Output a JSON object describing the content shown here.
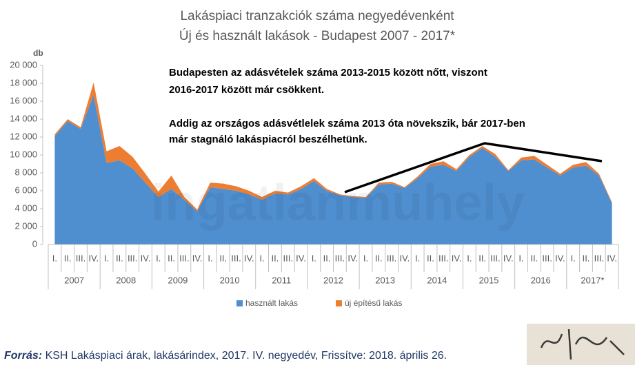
{
  "chart_data": {
    "type": "stacked_area",
    "title": "Lakáspiaci tranzakciók száma negyedévenként",
    "subtitle": "Új és használt lakások - Budapest 2007 - 2017*",
    "y_label": "db",
    "categories": [
      "I.",
      "II.",
      "III.",
      "IV.",
      "I.",
      "II.",
      "III.",
      "IV.",
      "I.",
      "II.",
      "III.",
      "IV.",
      "I.",
      "II.",
      "III.",
      "IV.",
      "I.",
      "II.",
      "III.",
      "IV.",
      "I.",
      "II.",
      "III.",
      "IV.",
      "I.",
      "II.",
      "III.",
      "IV.",
      "I.",
      "II.",
      "III.",
      "IV.",
      "I.",
      "II.",
      "III.",
      "IV.",
      "I.",
      "II.",
      "III.",
      "IV.",
      "I.",
      "II.",
      "III.",
      "IV."
    ],
    "years": [
      "2007",
      "2008",
      "2009",
      "2010",
      "2011",
      "2012",
      "2013",
      "2014",
      "2015",
      "2016",
      "2017*"
    ],
    "series": [
      {
        "name": "használt lakás",
        "color": "#4f8fd0",
        "values": [
          12100,
          13800,
          12900,
          16700,
          9100,
          9400,
          8500,
          6900,
          5300,
          6200,
          5000,
          3700,
          6400,
          6200,
          6000,
          5600,
          5000,
          5700,
          5600,
          6200,
          7100,
          6000,
          5500,
          5300,
          5200,
          6700,
          6800,
          6300,
          7400,
          8700,
          8900,
          8200,
          9800,
          10800,
          9800,
          8200,
          9400,
          9500,
          8600,
          7700,
          8600,
          8800,
          7700,
          4600
        ]
      },
      {
        "name": "új építésű lakás",
        "color": "#ed7d31",
        "values": [
          200,
          200,
          200,
          1400,
          1300,
          1600,
          1300,
          1000,
          600,
          1500,
          300,
          200,
          500,
          600,
          500,
          400,
          300,
          300,
          200,
          300,
          300,
          200,
          100,
          100,
          100,
          200,
          200,
          100,
          200,
          300,
          400,
          200,
          200,
          200,
          300,
          100,
          300,
          400,
          300,
          200,
          300,
          400,
          200,
          100
        ]
      }
    ],
    "ylim": [
      0,
      20000
    ],
    "yticks": [
      0,
      {
        "value": 2000,
        "label": "2 000"
      },
      {
        "value": 4000,
        "label": "4 000"
      },
      {
        "value": 6000,
        "label": "6 000"
      },
      {
        "value": 8000,
        "label": "8 000"
      },
      {
        "value": 10000,
        "label": "10 000"
      },
      {
        "value": 12000,
        "label": "12 000"
      },
      {
        "value": 14000,
        "label": "14 000"
      },
      {
        "value": 16000,
        "label": "16 000"
      },
      {
        "value": 18000,
        "label": "18 000"
      },
      {
        "value": 20000,
        "label": "20 000"
      }
    ],
    "annotations": [
      "Budapesten  az  adásvételek  száma  2013-2015 között nőtt, viszont",
      "2016-2017 között már csökkent.",
      "Addig az országos adásvétlelek száma 2013 óta növekszik, bár 2017-ben",
      "már stagnáló lakáspiacról beszélhetünk."
    ],
    "watermark": "ingatlanmuhely",
    "source_label": "Forrás:",
    "source": " KSH Lakáspiaci árak, lakásárindex, 2017. IV. negyedév, Frissítve: 2018. április 26."
  }
}
